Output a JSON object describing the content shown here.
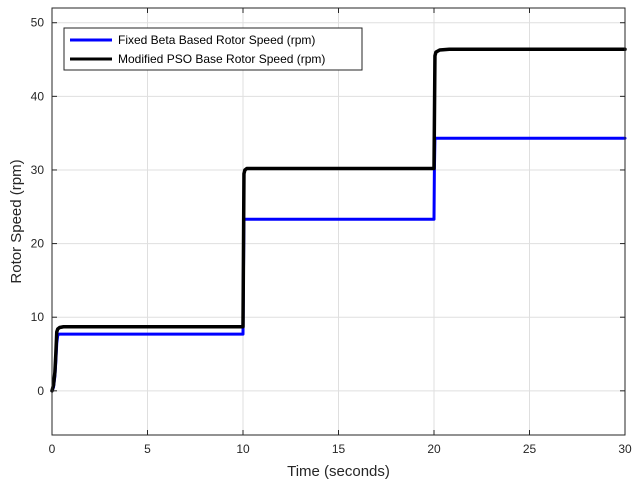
{
  "chart_data": {
    "type": "line",
    "title": "",
    "xlabel": "Time (seconds)",
    "ylabel": "Rotor Speed (rpm)",
    "xlim": [
      0,
      30
    ],
    "ylim": [
      -6,
      52
    ],
    "xticks": [
      0,
      5,
      10,
      15,
      20,
      25,
      30
    ],
    "yticks": [
      0,
      10,
      20,
      30,
      40,
      50
    ],
    "grid": true,
    "legend_position": "top-left",
    "series": [
      {
        "name": "Fixed Beta Based Rotor Speed (rpm)",
        "color": "#0000ff",
        "x": [
          0,
          0.08,
          0.15,
          0.2,
          0.25,
          0.3,
          0.35,
          10.0,
          10.02,
          10.05,
          20.0,
          20.02,
          20.05,
          30
        ],
        "y": [
          0,
          0.5,
          2,
          4,
          6.5,
          7.5,
          7.7,
          7.7,
          15,
          23.3,
          23.3,
          30,
          34.3,
          34.3
        ]
      },
      {
        "name": "Modified PSO Base Rotor Speed (rpm)",
        "color": "#000000",
        "x": [
          0,
          0.08,
          0.15,
          0.2,
          0.25,
          0.3,
          0.4,
          0.6,
          10.0,
          10.05,
          10.1,
          10.2,
          20.0,
          20.05,
          20.1,
          20.3,
          20.8,
          30
        ],
        "y": [
          0,
          0.8,
          2.5,
          5,
          8,
          8.4,
          8.6,
          8.7,
          8.7,
          29.5,
          30,
          30.2,
          30.2,
          45.5,
          46,
          46.3,
          46.4,
          46.4
        ]
      }
    ]
  }
}
